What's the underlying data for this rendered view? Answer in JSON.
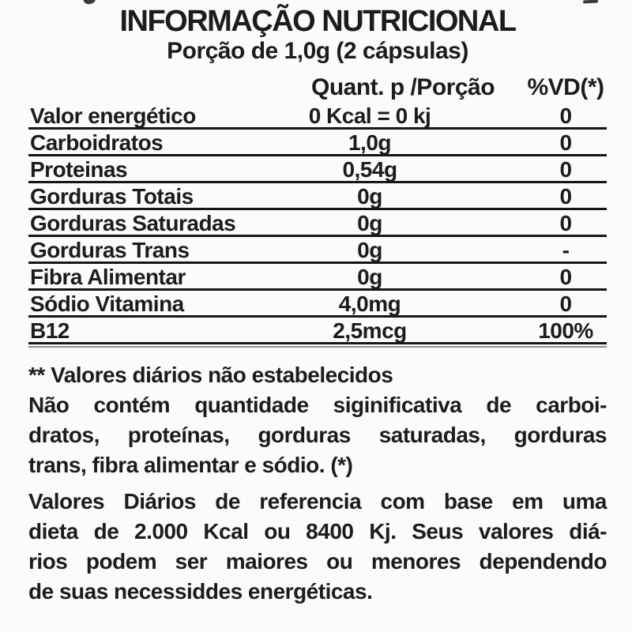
{
  "label": {
    "title": "INFORMAÇÃO NUTRICIONAL",
    "serving": "Porção de 1,0g (2 cápsulas)",
    "columns": {
      "quant": "Quant. p /Porção",
      "vd": "%VD(*)"
    },
    "rows": [
      {
        "name": "Valor energético",
        "quant": "0 Kcal = 0 kj",
        "vd": "0"
      },
      {
        "name": "Carboidratos",
        "quant": "1,0g",
        "vd": "0"
      },
      {
        "name": "Proteinas",
        "quant": "0,54g",
        "vd": "0"
      },
      {
        "name": "Gorduras Totais",
        "quant": "0g",
        "vd": "0"
      },
      {
        "name": "Gorduras Saturadas",
        "quant": "0g",
        "vd": "0"
      },
      {
        "name": "Gorduras Trans",
        "quant": "0g",
        "vd": "-"
      },
      {
        "name": "Fibra Alimentar",
        "quant": "0g",
        "vd": "0"
      },
      {
        "name": "Sódio Vitamina",
        "quant": "4,0mg",
        "vd": "0"
      },
      {
        "name": "B12",
        "quant": "2,5mcg",
        "vd": "100%"
      }
    ],
    "footnote1": {
      "line1": "** Valores diários não estabelecidos",
      "line2": "Não contém quantidade siginificativa de carboi-",
      "line3": "dratos, proteínas, gorduras saturadas, gorduras",
      "line4": "trans, fibra alimentar e sódio. (*)"
    },
    "footnote2": {
      "line1": "Valores Diários de referencia com base em uma",
      "line2": "dieta de 2.000 Kcal ou 8400 Kj. Seus valores diá-",
      "line3": "rios podem ser maiores ou menores dependendo",
      "line4": "de suas necessiddes energéticas."
    },
    "colors": {
      "text": "#1c1c1c",
      "background": "#fbfbfb",
      "rule": "#161616"
    }
  }
}
